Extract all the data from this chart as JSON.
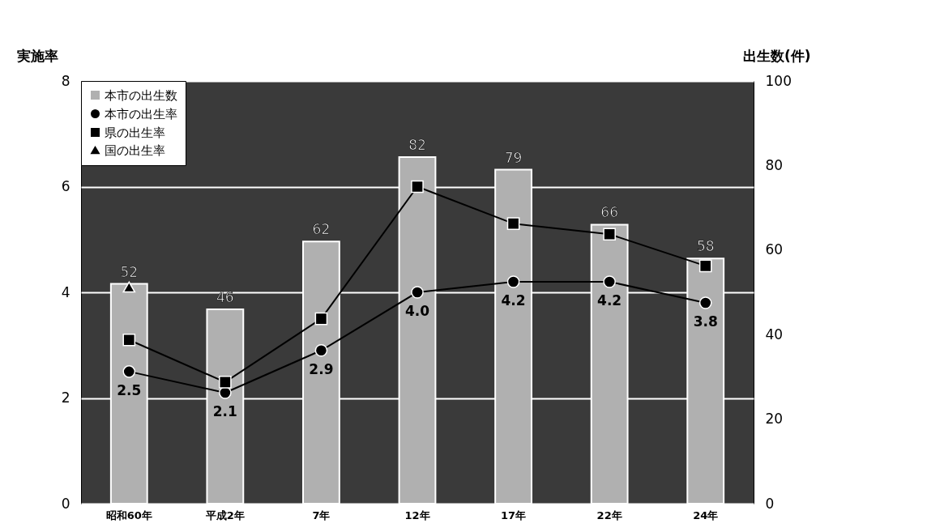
{
  "chart_data": {
    "type": "bar",
    "categories": [
      "昭和60年",
      "平成2年",
      "7年",
      "12年",
      "17年",
      "22年",
      "24年"
    ],
    "ylabel": "実施率",
    "y2label": "出生数(件)",
    "ylim": [
      0,
      8
    ],
    "yticks": [
      0,
      2,
      4,
      6,
      8
    ],
    "y2lim": [
      0,
      100
    ],
    "y2ticks": [
      0,
      20,
      40,
      60,
      80,
      100
    ],
    "grid": "y",
    "legend": "top left",
    "series": [
      {
        "name": "本市の出生数",
        "axis": "y2",
        "color": "#b0b0b0",
        "values": [
          52,
          46,
          62,
          82,
          79,
          66,
          58
        ],
        "value_labels": [
          "52",
          "46",
          "62",
          "82",
          "79",
          "66",
          "58"
        ]
      },
      {
        "name": "本市の出生率",
        "type": "line",
        "marker": "circle",
        "color": "#000000",
        "values": [
          2.5,
          2.1,
          2.9,
          4.0,
          4.2,
          4.2,
          3.8
        ],
        "value_labels": [
          "2.5",
          "2.1",
          "2.9",
          "4.0",
          "4.2",
          "4.2",
          "3.8"
        ]
      },
      {
        "name": "県の出生率",
        "type": "line",
        "marker": "square",
        "color": "#000000",
        "values": [
          3.1,
          2.3,
          3.5,
          6.0,
          5.3,
          5.1,
          4.5
        ]
      },
      {
        "name": "国の出生率",
        "type": "line",
        "marker": "triangle",
        "color": "#000000",
        "values": [
          4.1,
          null,
          null,
          null,
          null,
          null,
          null
        ]
      }
    ]
  }
}
